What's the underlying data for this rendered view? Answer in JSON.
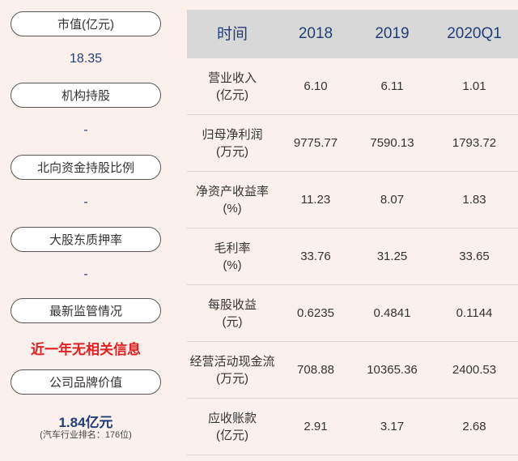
{
  "left": {
    "items": [
      {
        "label": "市值(亿元)",
        "value": "18.35"
      },
      {
        "label": "机构持股",
        "value": "-"
      },
      {
        "label": "北向资金持股比例",
        "value": "-"
      },
      {
        "label": "大股东质押率",
        "value": "-"
      },
      {
        "label": "最新监管情况",
        "value": "近一年无相关信息"
      },
      {
        "label": "公司品牌价值",
        "value": "1.84亿元",
        "note": "(汽车行业排名：176位)"
      }
    ]
  },
  "table": {
    "headers": [
      "时间",
      "2018",
      "2019",
      "2020Q1"
    ],
    "rows": [
      {
        "name1": "营业收入",
        "name2": "(亿元)",
        "v": [
          "6.10",
          "6.11",
          "1.01"
        ]
      },
      {
        "name1": "归母净利润",
        "name2": "(万元)",
        "v": [
          "9775.77",
          "7590.13",
          "1793.72"
        ]
      },
      {
        "name1": "净资产收益率",
        "name2": "(%)",
        "v": [
          "11.23",
          "8.07",
          "1.83"
        ]
      },
      {
        "name1": "毛利率",
        "name2": "(%)",
        "v": [
          "33.76",
          "31.25",
          "33.65"
        ]
      },
      {
        "name1": "每股收益",
        "name2": "(元)",
        "v": [
          "0.6235",
          "0.4841",
          "0.1144"
        ]
      },
      {
        "name1": "经营活动现金流",
        "name2": "(万元)",
        "v": [
          "708.88",
          "10365.36",
          "2400.53"
        ]
      },
      {
        "name1": "应收账款",
        "name2": "(亿元)",
        "v": [
          "2.91",
          "3.17",
          "2.68"
        ]
      }
    ]
  }
}
